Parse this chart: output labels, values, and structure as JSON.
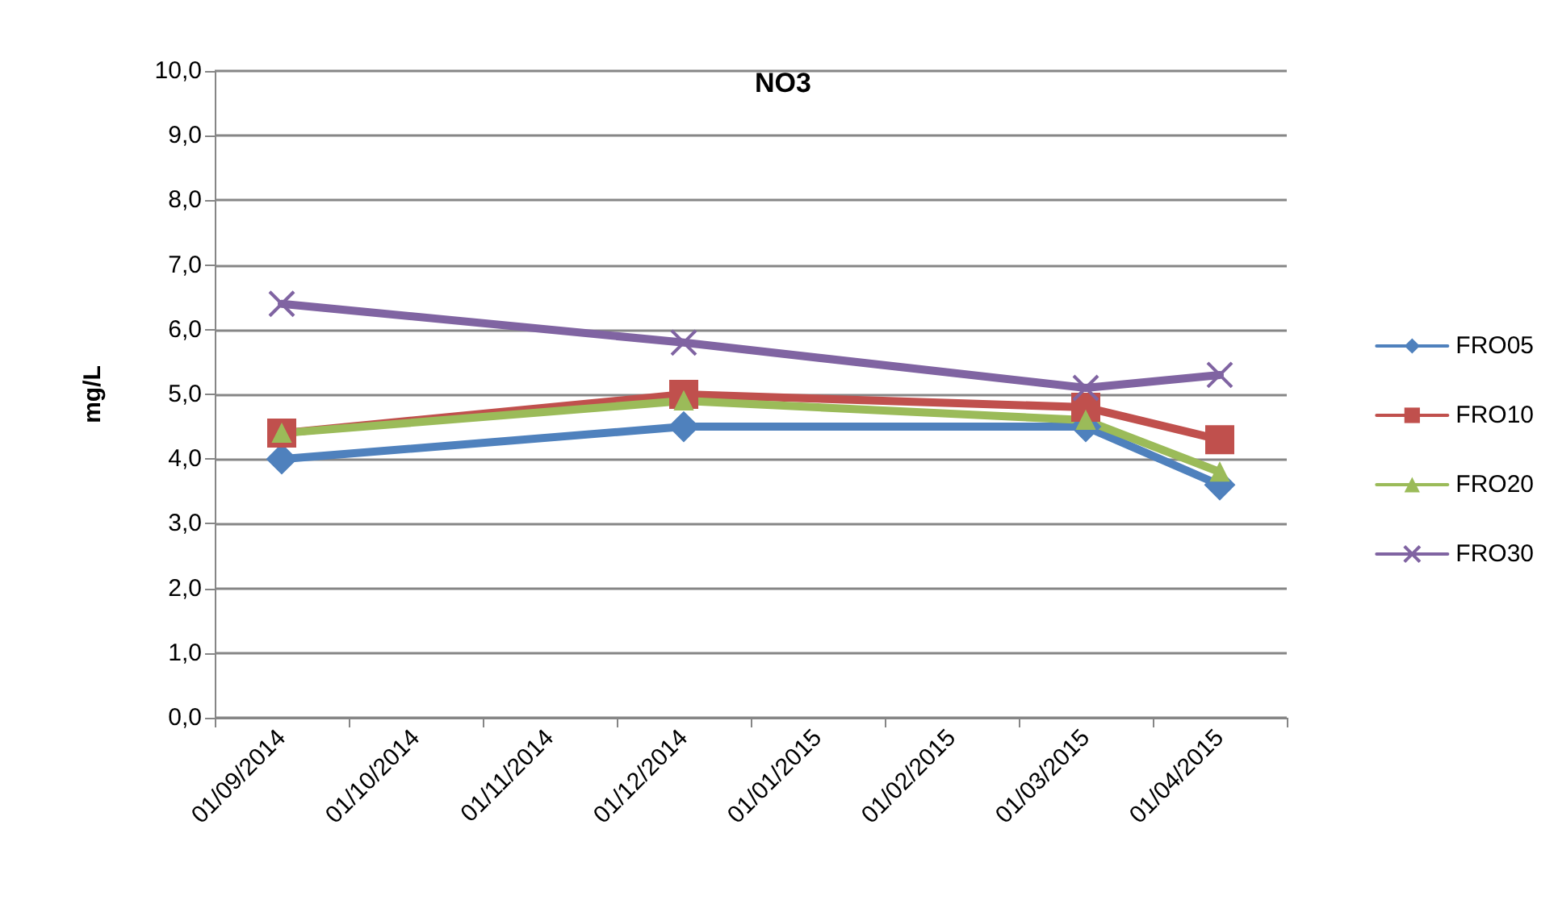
{
  "chart_data": {
    "type": "line",
    "title": "NO3",
    "ylabel": "mg/L",
    "categories": [
      "01/09/2014",
      "01/10/2014",
      "01/11/2014",
      "01/12/2014",
      "01/01/2015",
      "01/02/2015",
      "01/03/2015",
      "01/04/2015"
    ],
    "series": [
      {
        "name": "FRO05",
        "color": "#4f81bd",
        "marker": "diamond",
        "values": [
          4.0,
          null,
          null,
          4.5,
          null,
          null,
          4.5,
          3.6
        ]
      },
      {
        "name": "FRO10",
        "color": "#c0504d",
        "marker": "square",
        "values": [
          4.4,
          null,
          null,
          5.0,
          null,
          null,
          4.8,
          4.3
        ]
      },
      {
        "name": "FRO20",
        "color": "#9bbb59",
        "marker": "triangle",
        "values": [
          4.4,
          null,
          null,
          4.9,
          null,
          null,
          4.6,
          3.8
        ]
      },
      {
        "name": "FRO30",
        "color": "#8064a2",
        "marker": "cross",
        "values": [
          6.4,
          null,
          null,
          5.8,
          null,
          null,
          5.1,
          5.3
        ]
      }
    ],
    "ylim": [
      0,
      10
    ],
    "yticks": [
      {
        "value": 0,
        "label": "0,0"
      },
      {
        "value": 1,
        "label": "1,0"
      },
      {
        "value": 2,
        "label": "2,0"
      },
      {
        "value": 3,
        "label": "3,0"
      },
      {
        "value": 4,
        "label": "4,0"
      },
      {
        "value": 5,
        "label": "5,0"
      },
      {
        "value": 6,
        "label": "6,0"
      },
      {
        "value": 7,
        "label": "7,0"
      },
      {
        "value": 8,
        "label": "8,0"
      },
      {
        "value": 9,
        "label": "9,0"
      },
      {
        "value": 10,
        "label": "10,0"
      }
    ],
    "grid": "y",
    "legend": "right",
    "line_style": "solid"
  }
}
